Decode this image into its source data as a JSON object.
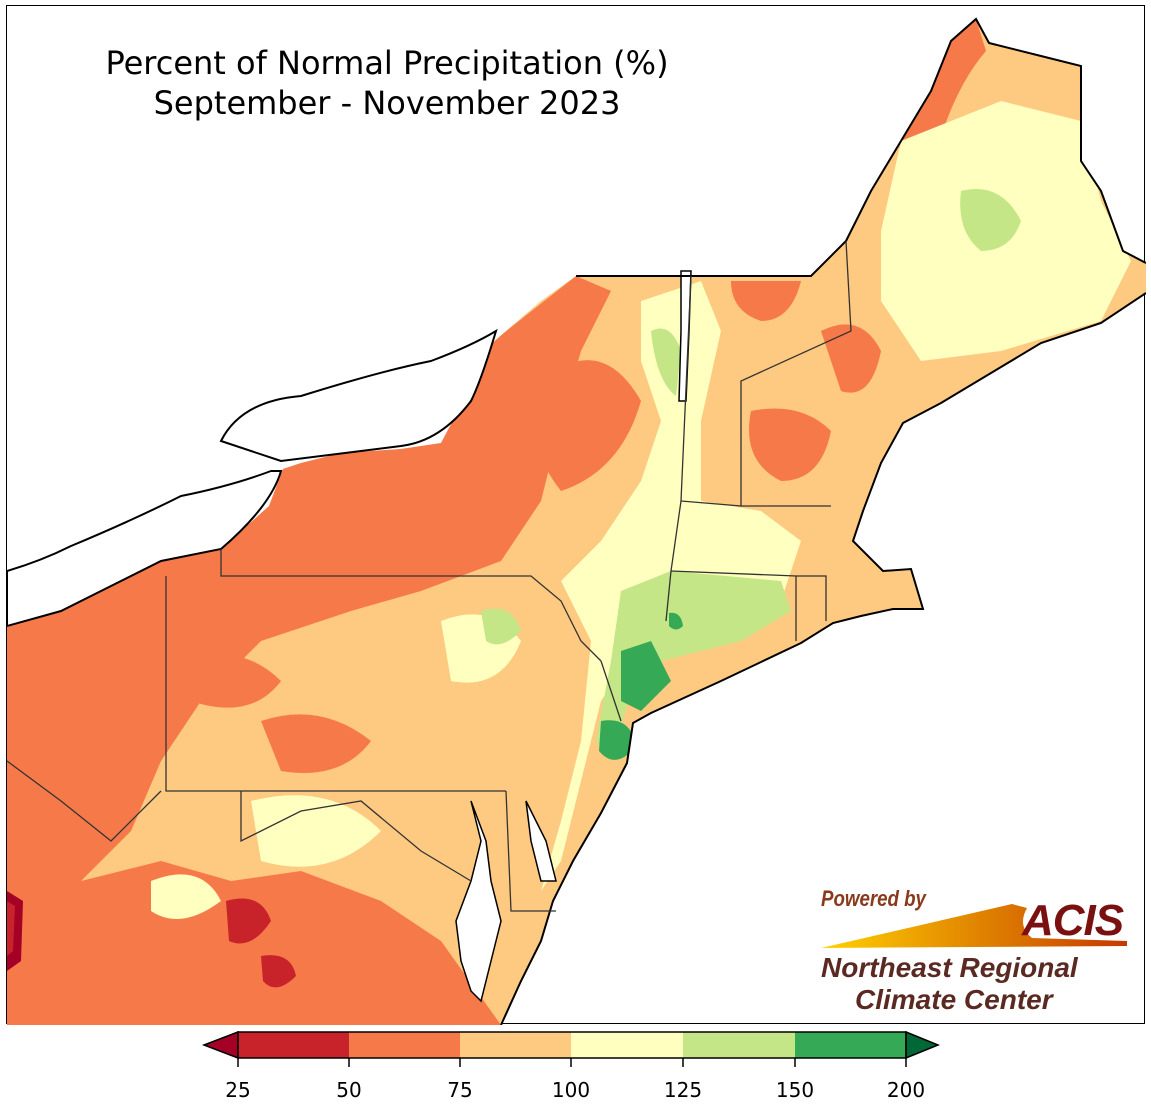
{
  "title": {
    "line1": "Percent of Normal Precipitation (%)",
    "line2": "September - November 2023"
  },
  "logo": {
    "powered_by": "Powered by",
    "acis": "ACIS",
    "org_line1": "Northeast Regional",
    "org_line2": "Climate Center"
  },
  "legend": {
    "ticks": [
      "25",
      "50",
      "75",
      "100",
      "125",
      "150",
      "200"
    ],
    "colors": {
      "below_25": "#a50026",
      "25_50": "#c8222a",
      "50_75": "#f67a49",
      "75_100": "#fec980",
      "100_125": "#ffffc0",
      "125_150": "#c4e687",
      "150_200": "#35a955",
      "above_200": "#006837"
    }
  }
}
